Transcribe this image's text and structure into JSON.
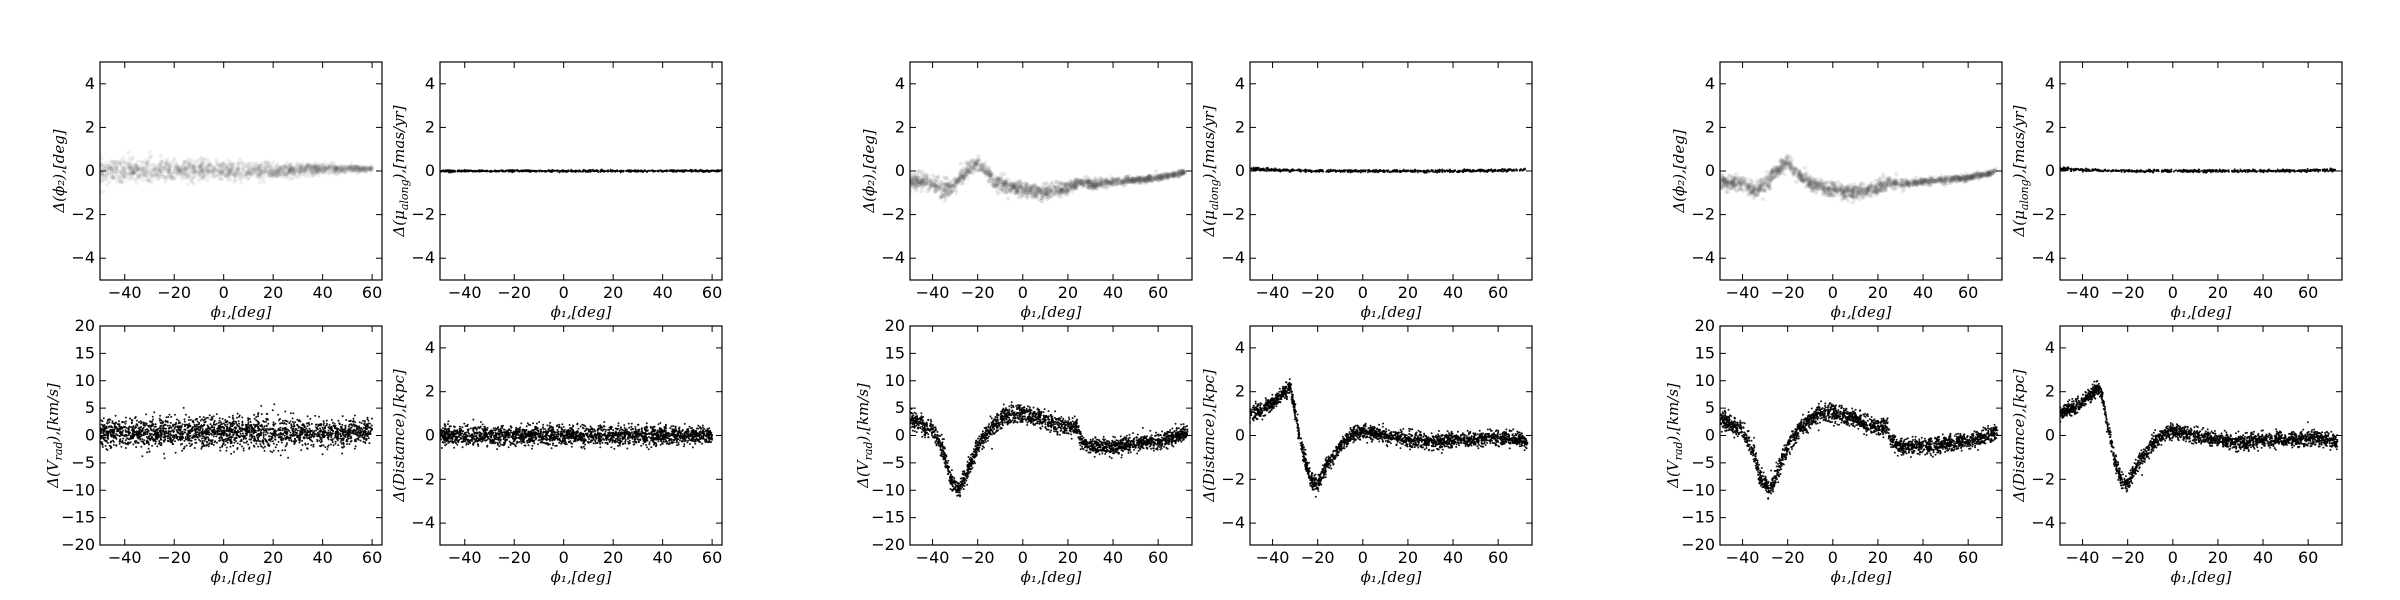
{
  "figure": {
    "background": "#ffffff",
    "mark_color": "#000000"
  },
  "chart_data": [
    {
      "id": "a1",
      "group": 1,
      "type": "scatter",
      "density": "light-grey",
      "xlabel": "ϕ₁,[deg]",
      "ylabel": "Δ(ϕ₂),[deg]",
      "xlim": [
        -50,
        64
      ],
      "ylim": [
        -5,
        5
      ],
      "xticks": [
        -40,
        -20,
        0,
        20,
        40,
        60
      ],
      "yticks": [
        -4,
        -2,
        0,
        2,
        4
      ],
      "series": [
        {
          "x": [
            -50,
            -40,
            -30,
            -20,
            -10,
            0,
            10,
            20,
            30,
            40,
            50,
            60
          ],
          "y": [
            0,
            0,
            0,
            0,
            0,
            0,
            0,
            0,
            0.05,
            0.1,
            0.1,
            0.1
          ],
          "spread": [
            0.5,
            0.5,
            0.5,
            0.45,
            0.45,
            0.4,
            0.35,
            0.3,
            0.25,
            0.2,
            0.15,
            0.1
          ]
        }
      ]
    },
    {
      "id": "a2",
      "group": 1,
      "type": "scatter",
      "density": "line",
      "xlabel": "ϕ₁,[deg]",
      "ylabel": "Δ(μ_along),[mas/yr]",
      "xlim": [
        -50,
        64
      ],
      "ylim": [
        -5,
        5
      ],
      "xticks": [
        -40,
        -20,
        0,
        20,
        40,
        60
      ],
      "yticks": [
        -4,
        -2,
        0,
        2,
        4
      ],
      "series": [
        {
          "x": [
            -50,
            64
          ],
          "y": [
            0,
            0
          ],
          "spread": [
            0.04,
            0.04
          ]
        }
      ]
    },
    {
      "id": "a3",
      "group": 1,
      "type": "scatter",
      "density": "heavy",
      "xlabel": "ϕ₁,[deg]",
      "ylabel": "Δ(V_rad),[km/s]",
      "xlim": [
        -50,
        64
      ],
      "ylim": [
        -20,
        20
      ],
      "xticks": [
        -40,
        -20,
        0,
        20,
        40,
        60
      ],
      "yticks": [
        -20,
        -15,
        -10,
        -5,
        0,
        5,
        10,
        15,
        20
      ],
      "series": [
        {
          "x": [
            -50,
            -30,
            -10,
            10,
            30,
            50,
            60
          ],
          "y": [
            0.5,
            0.5,
            0.5,
            0.5,
            0.5,
            0.5,
            1
          ],
          "spread": [
            2.5,
            2.5,
            2.5,
            2.5,
            2.5,
            2.2,
            1.8
          ]
        }
      ]
    },
    {
      "id": "a4",
      "group": 1,
      "type": "scatter",
      "density": "heavy",
      "xlabel": "ϕ₁,[deg]",
      "ylabel": "Δ(Distance),[kpc]",
      "xlim": [
        -50,
        64
      ],
      "ylim": [
        -5,
        5
      ],
      "xticks": [
        -40,
        -20,
        0,
        20,
        40,
        60
      ],
      "yticks": [
        -4,
        -2,
        0,
        2,
        4
      ],
      "series": [
        {
          "x": [
            -50,
            -30,
            -10,
            10,
            30,
            50,
            60
          ],
          "y": [
            0,
            0,
            0,
            0,
            0,
            0,
            0
          ],
          "spread": [
            0.4,
            0.4,
            0.4,
            0.4,
            0.4,
            0.35,
            0.3
          ]
        }
      ]
    },
    {
      "id": "b1",
      "group": 2,
      "type": "scatter",
      "density": "grey",
      "xlabel": "ϕ₁,[deg]",
      "ylabel": "Δ(ϕ₂),[deg]",
      "xlim": [
        -50,
        75
      ],
      "ylim": [
        -5,
        5
      ],
      "xticks": [
        -40,
        -20,
        0,
        20,
        40,
        60
      ],
      "yticks": [
        -4,
        -2,
        0,
        2,
        4
      ],
      "series": [
        {
          "x": [
            -50,
            -40,
            -35,
            -30,
            -25,
            -20,
            -15,
            -10,
            0,
            10,
            20,
            25,
            30,
            40,
            50,
            60,
            70,
            72
          ],
          "y": [
            -0.5,
            -0.6,
            -0.9,
            -0.6,
            0,
            0.4,
            -0.2,
            -0.6,
            -0.9,
            -1.0,
            -0.8,
            -0.5,
            -0.6,
            -0.5,
            -0.4,
            -0.3,
            -0.1,
            0
          ],
          "spread": [
            0.35,
            0.35,
            0.4,
            0.35,
            0.3,
            0.3,
            0.3,
            0.3,
            0.3,
            0.3,
            0.3,
            0.2,
            0.2,
            0.15,
            0.15,
            0.12,
            0.1,
            0.08
          ]
        }
      ]
    },
    {
      "id": "b2",
      "group": 2,
      "type": "scatter",
      "density": "line",
      "xlabel": "ϕ₁,[deg]",
      "ylabel": "Δ(μ_along),[mas/yr]",
      "xlim": [
        -50,
        75
      ],
      "ylim": [
        -5,
        5
      ],
      "xticks": [
        -40,
        -20,
        0,
        20,
        40,
        60
      ],
      "yticks": [
        -4,
        -2,
        0,
        2,
        4
      ],
      "series": [
        {
          "x": [
            -50,
            -40,
            -20,
            0,
            20,
            40,
            60,
            72
          ],
          "y": [
            0.1,
            0.05,
            0,
            0,
            0,
            0,
            0.02,
            0.05
          ],
          "spread": [
            0.08,
            0.06,
            0.05,
            0.05,
            0.05,
            0.05,
            0.05,
            0.06
          ]
        }
      ]
    },
    {
      "id": "b3",
      "group": 2,
      "type": "scatter",
      "density": "heavy",
      "xlabel": "ϕ₁,[deg]",
      "ylabel": "Δ(V_rad),[km/s]",
      "xlim": [
        -50,
        75
      ],
      "ylim": [
        -20,
        20
      ],
      "xticks": [
        -40,
        -20,
        0,
        20,
        40,
        60
      ],
      "yticks": [
        -20,
        -15,
        -10,
        -5,
        0,
        5,
        10,
        15,
        20
      ],
      "series": [
        {
          "x": [
            -50,
            -45,
            -40,
            -35,
            -32,
            -28,
            -24,
            -20,
            -15,
            -10,
            -5,
            0,
            5,
            10,
            15,
            20,
            24,
            26,
            30,
            40,
            50,
            60,
            65,
            70,
            73
          ],
          "y": [
            3,
            2,
            1,
            -3,
            -8,
            -10,
            -6,
            -2,
            1,
            3,
            4,
            4,
            3.5,
            3,
            2,
            1.5,
            1.5,
            -1,
            -2,
            -2,
            -1.5,
            -1,
            -0.5,
            0,
            1
          ],
          "spread": [
            1.5,
            1.5,
            1.5,
            1.5,
            1.5,
            1.5,
            1.5,
            1.5,
            1.5,
            1.5,
            1.5,
            1.5,
            1.5,
            1.5,
            1.5,
            1.5,
            1.3,
            1.3,
            1.3,
            1.3,
            1.3,
            1.3,
            1.3,
            1.3,
            1.3
          ]
        }
      ]
    },
    {
      "id": "b4",
      "group": 2,
      "type": "scatter",
      "density": "heavy",
      "xlabel": "ϕ₁,[deg]",
      "ylabel": "Δ(Distance),[kpc]",
      "xlim": [
        -50,
        75
      ],
      "ylim": [
        -5,
        5
      ],
      "xticks": [
        -40,
        -20,
        0,
        20,
        40,
        60
      ],
      "yticks": [
        -4,
        -2,
        0,
        2,
        4
      ],
      "series": [
        {
          "x": [
            -50,
            -45,
            -40,
            -35,
            -32,
            -29,
            -26,
            -23,
            -20,
            -15,
            -10,
            -5,
            0,
            10,
            20,
            30,
            40,
            50,
            60,
            70,
            73
          ],
          "y": [
            1.0,
            1.2,
            1.5,
            2.0,
            2.2,
            0.5,
            -1.0,
            -2.0,
            -2.2,
            -1.2,
            -0.5,
            0,
            0.2,
            0,
            -0.2,
            -0.3,
            -0.2,
            -0.2,
            -0.1,
            -0.2,
            -0.3
          ],
          "spread": [
            0.3,
            0.3,
            0.3,
            0.3,
            0.3,
            0.35,
            0.35,
            0.35,
            0.35,
            0.3,
            0.3,
            0.3,
            0.3,
            0.3,
            0.3,
            0.3,
            0.3,
            0.3,
            0.3,
            0.3,
            0.3
          ]
        }
      ]
    },
    {
      "id": "c1",
      "group": 3,
      "type": "scatter",
      "density": "grey",
      "xlabel": "ϕ₁,[deg]",
      "ylabel": "Δ(ϕ₂),[deg]",
      "xlim": [
        -50,
        75
      ],
      "ylim": [
        -5,
        5
      ],
      "xticks": [
        -40,
        -20,
        0,
        20,
        40,
        60
      ],
      "yticks": [
        -4,
        -2,
        0,
        2,
        4
      ],
      "series": [
        {
          "x": [
            -50,
            -40,
            -35,
            -30,
            -25,
            -20,
            -15,
            -10,
            0,
            10,
            20,
            25,
            30,
            40,
            50,
            60,
            70,
            72
          ],
          "y": [
            -0.5,
            -0.6,
            -0.9,
            -0.6,
            0,
            0.4,
            -0.2,
            -0.6,
            -0.9,
            -1.0,
            -0.8,
            -0.5,
            -0.6,
            -0.5,
            -0.4,
            -0.3,
            -0.1,
            0
          ],
          "spread": [
            0.35,
            0.35,
            0.4,
            0.35,
            0.3,
            0.3,
            0.3,
            0.3,
            0.3,
            0.3,
            0.3,
            0.2,
            0.2,
            0.15,
            0.15,
            0.12,
            0.1,
            0.08
          ]
        }
      ]
    },
    {
      "id": "c2",
      "group": 3,
      "type": "scatter",
      "density": "line",
      "xlabel": "ϕ₁,[deg]",
      "ylabel": "Δ(μ_along),[mas/yr]",
      "xlim": [
        -50,
        75
      ],
      "ylim": [
        -5,
        5
      ],
      "xticks": [
        -40,
        -20,
        0,
        20,
        40,
        60
      ],
      "yticks": [
        -4,
        -2,
        0,
        2,
        4
      ],
      "series": [
        {
          "x": [
            -50,
            -40,
            -20,
            0,
            20,
            40,
            60,
            72
          ],
          "y": [
            0.1,
            0.05,
            0,
            0,
            0,
            0,
            0.02,
            0.05
          ],
          "spread": [
            0.08,
            0.06,
            0.05,
            0.05,
            0.05,
            0.05,
            0.05,
            0.06
          ]
        }
      ]
    },
    {
      "id": "c3",
      "group": 3,
      "type": "scatter",
      "density": "heavy",
      "xlabel": "ϕ₁,[deg]",
      "ylabel": "Δ(V_rad),[km/s]",
      "xlim": [
        -50,
        75
      ],
      "ylim": [
        -20,
        20
      ],
      "xticks": [
        -40,
        -20,
        0,
        20,
        40,
        60
      ],
      "yticks": [
        -20,
        -15,
        -10,
        -5,
        0,
        5,
        10,
        15,
        20
      ],
      "series": [
        {
          "x": [
            -50,
            -45,
            -40,
            -35,
            -32,
            -28,
            -24,
            -20,
            -15,
            -10,
            -5,
            0,
            5,
            10,
            15,
            20,
            24,
            26,
            30,
            40,
            50,
            60,
            65,
            70,
            73
          ],
          "y": [
            3,
            2,
            1,
            -3,
            -8,
            -10,
            -6,
            -2,
            1,
            3,
            4,
            4,
            3.5,
            3,
            2,
            1.5,
            1.5,
            -1,
            -2,
            -2,
            -1.5,
            -1,
            -0.5,
            0,
            1
          ],
          "spread": [
            1.5,
            1.5,
            1.5,
            1.5,
            1.5,
            1.5,
            1.5,
            1.5,
            1.5,
            1.5,
            1.5,
            1.5,
            1.5,
            1.5,
            1.5,
            1.5,
            1.3,
            1.3,
            1.3,
            1.3,
            1.3,
            1.3,
            1.3,
            1.3,
            1.3
          ]
        }
      ]
    },
    {
      "id": "c4",
      "group": 3,
      "type": "scatter",
      "density": "heavy",
      "xlabel": "ϕ₁,[deg]",
      "ylabel": "Δ(Distance),[kpc]",
      "xlim": [
        -50,
        75
      ],
      "ylim": [
        -5,
        5
      ],
      "xticks": [
        -40,
        -20,
        0,
        20,
        40,
        60
      ],
      "yticks": [
        -4,
        -2,
        0,
        2,
        4
      ],
      "series": [
        {
          "x": [
            -50,
            -45,
            -40,
            -35,
            -32,
            -29,
            -26,
            -23,
            -20,
            -15,
            -10,
            -5,
            0,
            10,
            20,
            30,
            40,
            50,
            60,
            70,
            73
          ],
          "y": [
            1.0,
            1.2,
            1.5,
            2.0,
            2.2,
            0.5,
            -1.0,
            -2.0,
            -2.2,
            -1.2,
            -0.5,
            0,
            0.2,
            0,
            -0.2,
            -0.3,
            -0.2,
            -0.2,
            -0.1,
            -0.2,
            -0.3
          ],
          "spread": [
            0.3,
            0.3,
            0.3,
            0.3,
            0.3,
            0.35,
            0.35,
            0.35,
            0.35,
            0.3,
            0.3,
            0.3,
            0.3,
            0.3,
            0.3,
            0.3,
            0.3,
            0.3,
            0.3,
            0.3,
            0.3
          ]
        }
      ]
    }
  ]
}
